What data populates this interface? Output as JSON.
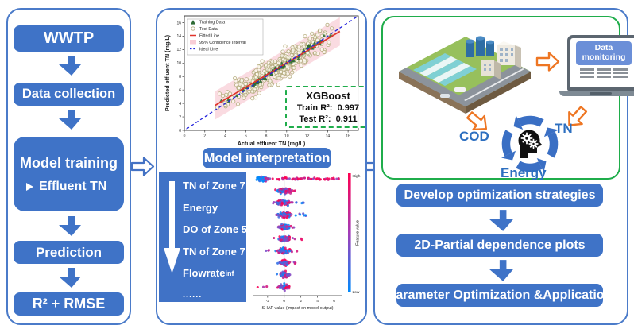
{
  "colors": {
    "box_blue": "#3F73C7",
    "panel_border": "#4B7BC9",
    "green": "#1FAD4B",
    "orange": "#EE7623",
    "cycle_blue": "#3A6FC4",
    "label_blue": "#2D6FC0",
    "shap_low": "#008bfb",
    "shap_mid": "#a33cb8",
    "shap_high": "#ff0051",
    "fitted_red": "#E0342B",
    "band_pink": "#F5B8C4",
    "ideal_blue": "#2424DC",
    "test_edge": "#B5AC7F",
    "train_green": "#2E6B33"
  },
  "left_panel": {
    "steps": [
      {
        "label": "WWTP"
      },
      {
        "label": "Data collection"
      },
      {
        "label": "Model training",
        "sublabel": "Effluent TN"
      },
      {
        "label": "Prediction"
      },
      {
        "label": "R² + RMSE"
      }
    ]
  },
  "middle_panel": {
    "interpretation_label": "Model interpretation"
  },
  "right_panel": {
    "laptop_label": "Data monitoring",
    "cycle": {
      "left": "COD",
      "right": "TN",
      "bottom": "Energy"
    },
    "steps": [
      "Develop optimization strategies",
      "2D-Partial dependence plots",
      "Parameter Optimization &Application"
    ]
  },
  "chart_data": [
    {
      "type": "scatter",
      "xlabel": "Actual effluent TN (mg/L)",
      "ylabel": "Predicted effluent TN (mg/L)",
      "xlim": [
        0,
        17
      ],
      "ylim": [
        0,
        17
      ],
      "xticks": [
        0,
        2,
        4,
        6,
        8,
        10,
        12,
        14,
        16
      ],
      "yticks": [
        0,
        2,
        4,
        6,
        8,
        10,
        12,
        14,
        16
      ],
      "legend": [
        "Training Data",
        "Test Data",
        "Fitted Line",
        "95% Confidence Interval",
        "Ideal Line"
      ],
      "annotation": {
        "title": "XGBoost",
        "train_label": "Train R²:",
        "train_value": "0.997",
        "test_label": "Test R²:",
        "test_value": "0.911"
      },
      "fitted_line": {
        "x1": 3.0,
        "y1": 3.7,
        "x2": 15.2,
        "y2": 14.7
      },
      "ideal_line": {
        "x1": 0.2,
        "y1": 0.2,
        "x2": 16.8,
        "y2": 16.8
      },
      "band_halfwidth": 2.1,
      "generator": {
        "seed": 7,
        "n_test": 380,
        "n_train": 65,
        "x_min": 3.0,
        "x_max": 15.2,
        "slope": 0.91,
        "intercept": 1.0,
        "noise_test": 1.35,
        "noise_train": 0.32
      }
    },
    {
      "type": "beeswarm",
      "features": [
        "TN of Zone 7",
        "Energy",
        "DO of Zone 5",
        "TN of Zone 7"
      ],
      "flowrate": {
        "base": "Flowrate",
        "sub": "inf"
      },
      "ellipsis": "......",
      "xlabel": "SHAP value (impact on model output)",
      "xticks": [
        -2,
        0,
        2,
        4,
        6
      ],
      "xlim": [
        -3.8,
        7.0
      ],
      "colorbar": {
        "top": "High",
        "bottom": "Low",
        "label": "Feature value"
      },
      "n_rows": 10,
      "rows": [
        {
          "n": 55,
          "center": -2.6,
          "spread": 0.7,
          "bias": 0.12,
          "tail_n": 60,
          "tail_lo": -2.2,
          "tail_hi": 6.6,
          "tail_bias": 0.8
        },
        {
          "n": 85,
          "center": 0.1,
          "spread": 0.9,
          "bias": 0.55,
          "tail_n": 10,
          "tail_lo": -1.8,
          "tail_hi": 1.6,
          "tail_bias": 0.5
        },
        {
          "n": 85,
          "center": -0.1,
          "spread": 0.8,
          "bias": 0.5,
          "tail_n": 12,
          "tail_lo": -1.5,
          "tail_hi": 2.4,
          "tail_bias": 0.3
        },
        {
          "n": 85,
          "center": 0.1,
          "spread": 0.7,
          "bias": 0.5,
          "tail_n": 14,
          "tail_lo": -1.2,
          "tail_hi": 2.8,
          "tail_bias": 0.3
        },
        {
          "n": 85,
          "center": 0.0,
          "spread": 0.6,
          "bias": 0.5,
          "tail_n": 8,
          "tail_lo": -1.5,
          "tail_hi": 1.6,
          "tail_bias": 0.5
        },
        {
          "n": 85,
          "center": 0.1,
          "spread": 0.7,
          "bias": 0.55,
          "tail_n": 10,
          "tail_lo": -1.4,
          "tail_hi": 2.4,
          "tail_bias": 0.6
        },
        {
          "n": 85,
          "center": -0.1,
          "spread": 0.7,
          "bias": 0.45,
          "tail_n": 8,
          "tail_lo": -2.4,
          "tail_hi": 1.6,
          "tail_bias": 0.4
        },
        {
          "n": 80,
          "center": 0.0,
          "spread": 0.5,
          "bias": 0.5,
          "tail_n": 8,
          "tail_lo": -1.0,
          "tail_hi": 1.5,
          "tail_bias": 0.5
        },
        {
          "n": 70,
          "center": 0.0,
          "spread": 0.5,
          "bias": 0.5,
          "tail_n": 6,
          "tail_lo": -0.9,
          "tail_hi": 1.2,
          "tail_bias": 0.5
        },
        {
          "n": 60,
          "center": 0.0,
          "spread": 0.5,
          "bias": 0.45,
          "tail_n": 7,
          "tail_lo": -3.3,
          "tail_hi": 0.9,
          "tail_bias": 0.8
        }
      ]
    }
  ]
}
